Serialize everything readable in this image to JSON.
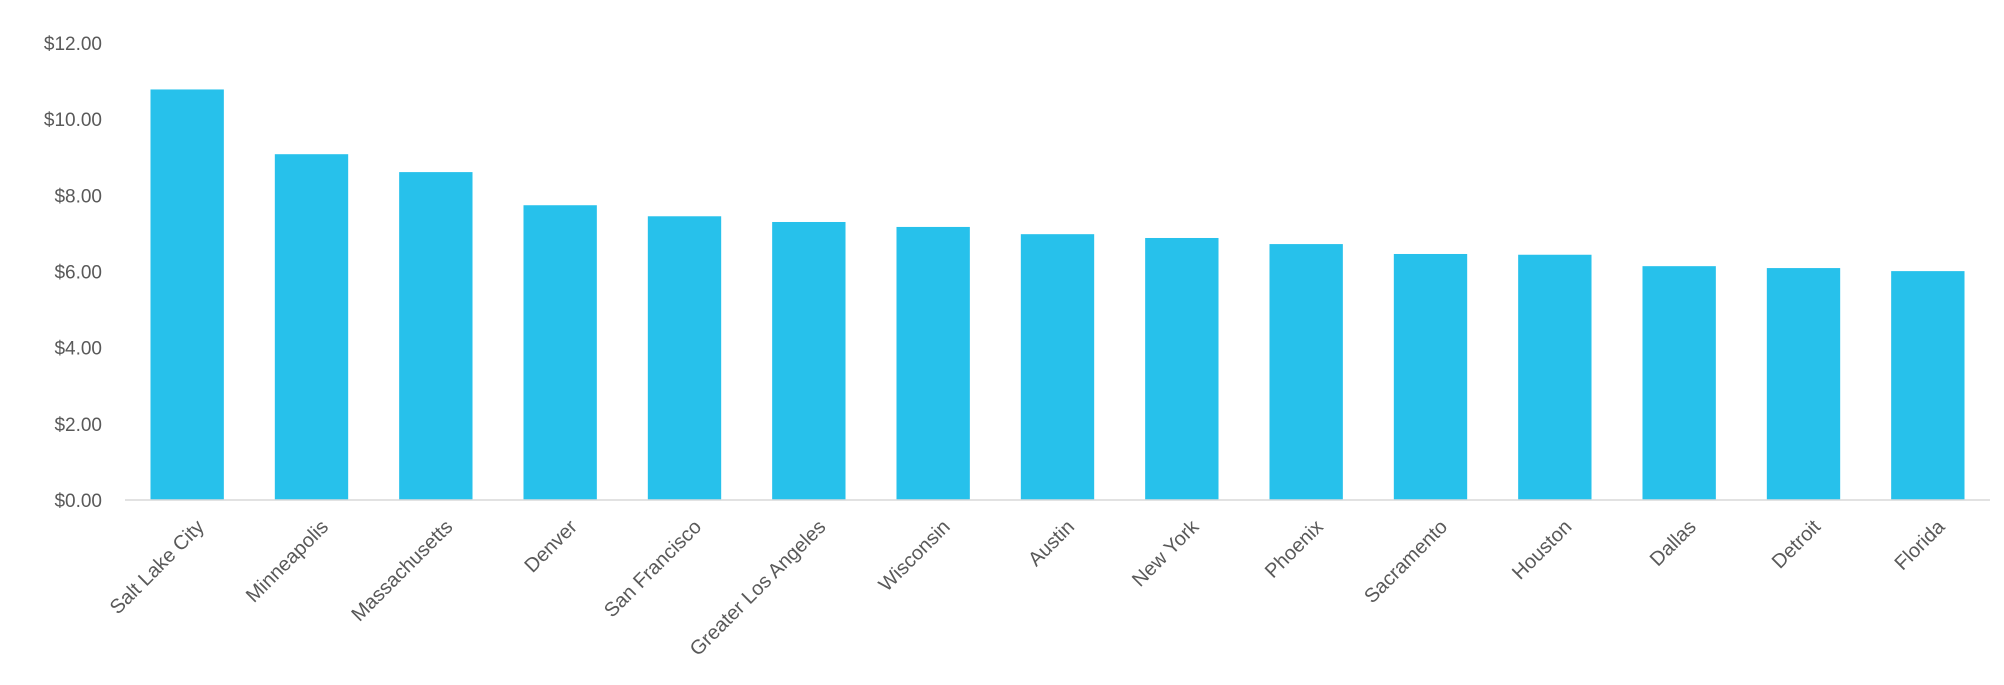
{
  "chart_data": {
    "type": "bar",
    "title": "",
    "xlabel": "",
    "ylabel": "",
    "ylim": [
      0,
      12
    ],
    "y_ticks": [
      0,
      2,
      4,
      6,
      8,
      10,
      12
    ],
    "y_tick_labels": [
      "$0.00",
      "$2.00",
      "$4.00",
      "$6.00",
      "$8.00",
      "$10.00",
      "$12.00"
    ],
    "grid": false,
    "legend": "none",
    "bar_color": "#27C1EB",
    "categories": [
      "Salt Lake City",
      "Minneapolis",
      "Massachusetts",
      "Denver",
      "San Francisco",
      "Greater Los Angeles",
      "Wisconsin",
      "Austin",
      "New York",
      "Phoenix",
      "Sacramento",
      "Houston",
      "Dallas",
      "Detroit",
      "Florida"
    ],
    "values": [
      10.78,
      9.08,
      8.61,
      7.74,
      7.45,
      7.3,
      7.17,
      6.98,
      6.88,
      6.72,
      6.46,
      6.44,
      6.14,
      6.09,
      6.01
    ]
  }
}
